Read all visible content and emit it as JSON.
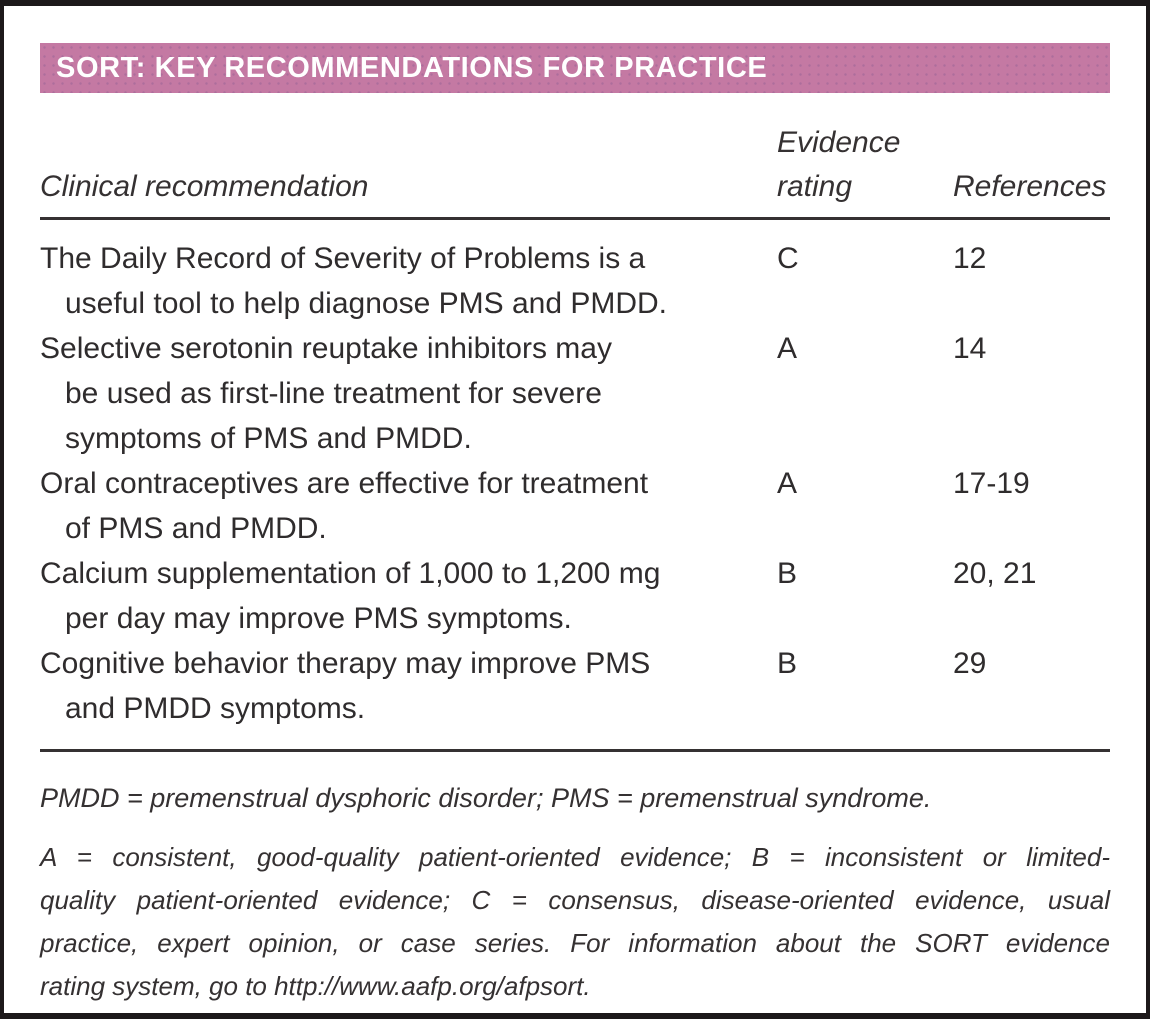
{
  "title": "SORT: KEY RECOMMENDATIONS FOR PRACTICE",
  "colors": {
    "header_bg": "#c479a3",
    "header_text": "#ffffff",
    "body_text": "#2f2c2d",
    "frame_border": "#1d191a",
    "rule": "#353132"
  },
  "table": {
    "columns": {
      "clinical": "Clinical recommendation",
      "evidence": "Evidence rating",
      "references": "References"
    },
    "rows": [
      {
        "lines": [
          "The Daily Record of Severity of Problems is a",
          "useful tool to help diagnose PMS and PMDD."
        ],
        "evidence_rating": "C",
        "references": "12"
      },
      {
        "lines": [
          "Selective serotonin reuptake inhibitors may",
          "be used as first-line treatment for severe",
          "symptoms of PMS and PMDD."
        ],
        "evidence_rating": "A",
        "references": "14"
      },
      {
        "lines": [
          "Oral contraceptives are effective for treatment",
          "of PMS and PMDD."
        ],
        "evidence_rating": "A",
        "references": "17-19"
      },
      {
        "lines": [
          "Calcium supplementation of 1,000 to 1,200 mg",
          "per day may improve PMS symptoms."
        ],
        "evidence_rating": "B",
        "references": "20, 21"
      },
      {
        "lines": [
          "Cognitive behavior therapy may improve PMS",
          "and PMDD symptoms."
        ],
        "evidence_rating": "B",
        "references": "29"
      }
    ]
  },
  "footnotes": {
    "abbreviations": "PMDD = premenstrual dysphoric disorder; PMS = premenstrual syndrome.",
    "rating_key_lines": [
      "A = consistent, good-quality patient-oriented evidence; B = inconsistent or limited-",
      "quality patient-oriented evidence; C = consensus, disease-oriented evidence, usual",
      "practice, expert opinion, or case series. For information about the SORT evidence",
      "rating system, go to http://www.aafp.org/afpsort."
    ]
  }
}
